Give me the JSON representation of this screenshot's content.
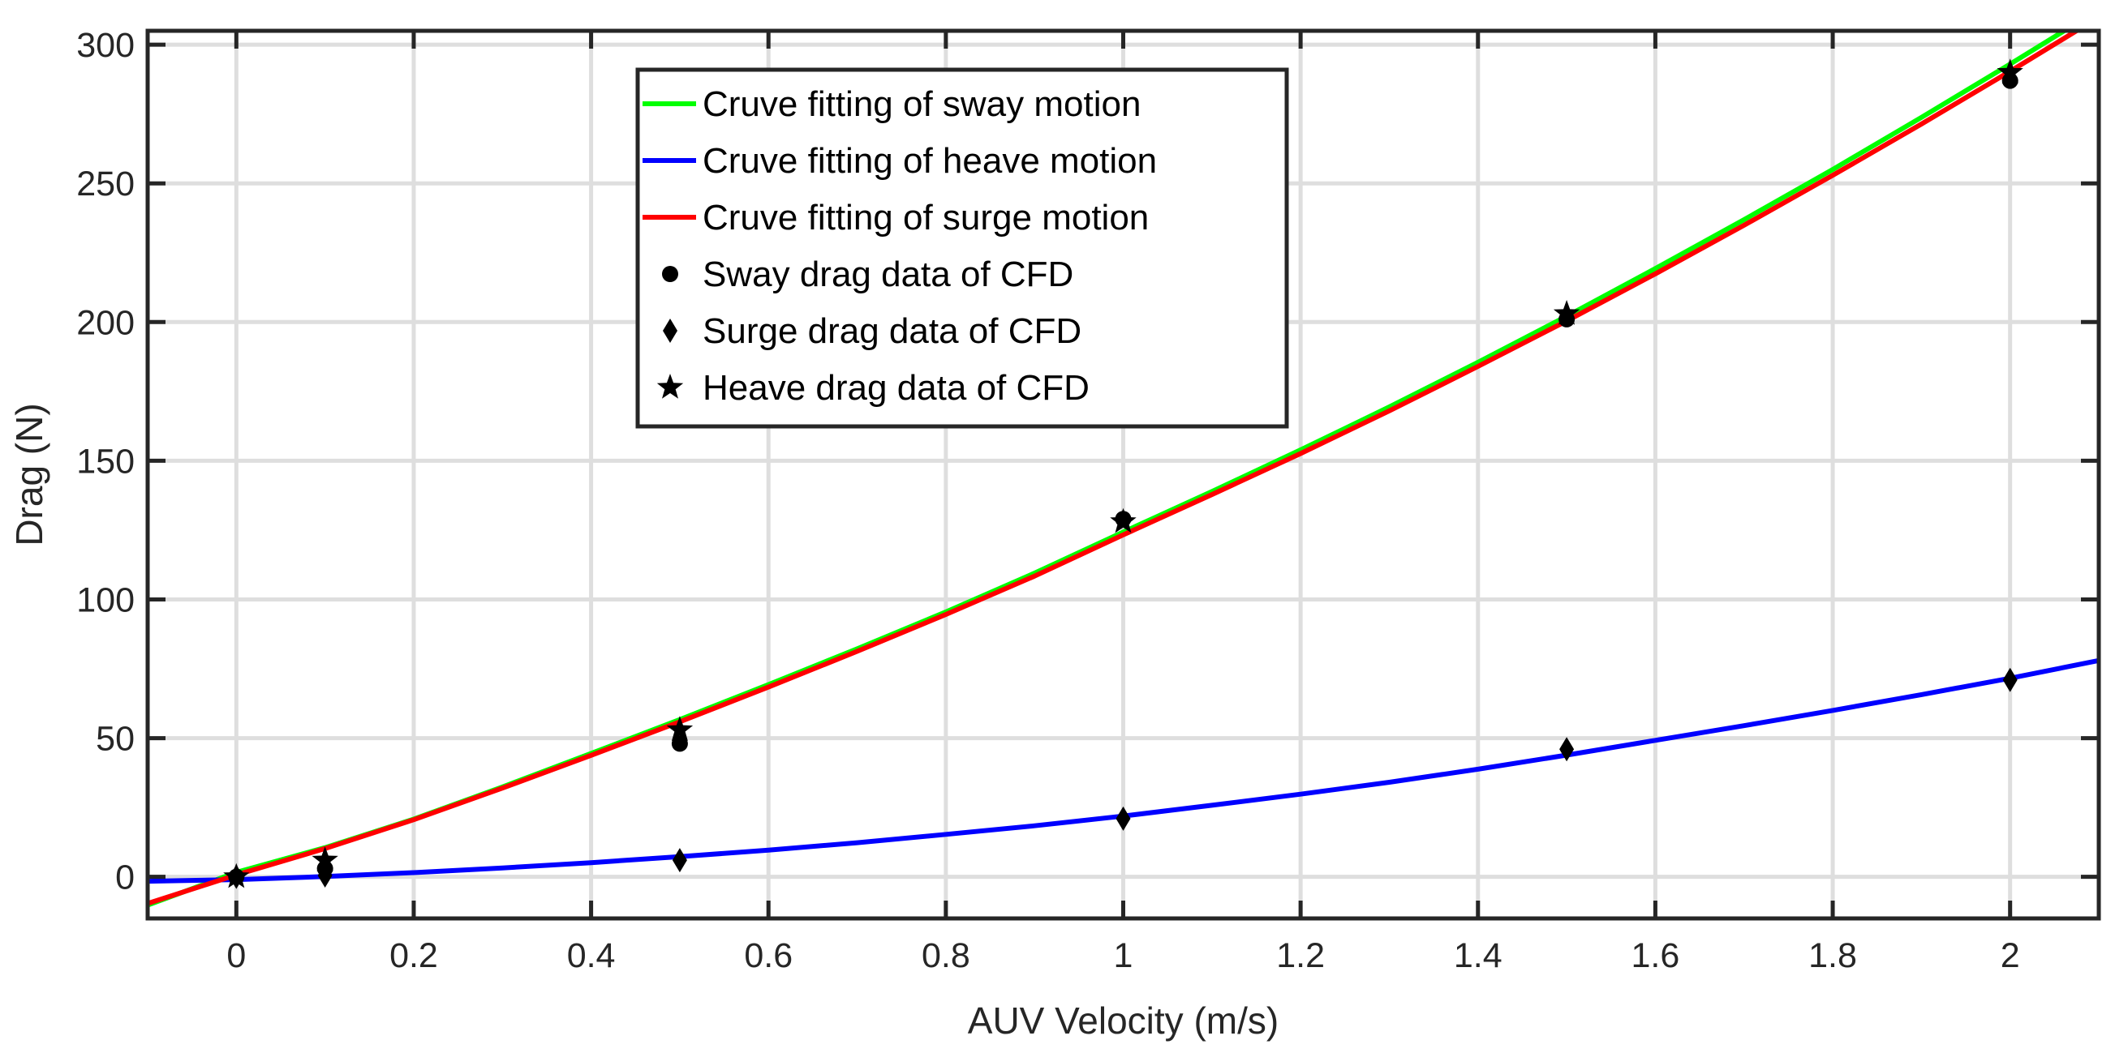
{
  "chart_data": {
    "type": "line",
    "xlabel": "AUV Velocity (m/s)",
    "ylabel": "Drag (N)",
    "xlim": [
      -0.1,
      2.1
    ],
    "ylim": [
      -15,
      305
    ],
    "xticks": [
      0,
      0.2,
      0.4,
      0.6,
      0.8,
      1,
      1.2,
      1.4,
      1.6,
      1.8,
      2
    ],
    "xtick_labels": [
      "0",
      "0.2",
      "0.4",
      "0.6",
      "0.8",
      "1",
      "1.2",
      "1.4",
      "1.6",
      "1.8",
      "2"
    ],
    "yticks": [
      0,
      50,
      100,
      150,
      200,
      250,
      300
    ],
    "ytick_labels": [
      "0",
      "50",
      "100",
      "150",
      "200",
      "250",
      "300"
    ],
    "grid": true,
    "legend_position": "top-center",
    "series": [
      {
        "name": "Cruve fitting of sway motion",
        "kind": "line",
        "color": "#00ff00",
        "x": [
          -0.1,
          0,
          0.1,
          0.2,
          0.3,
          0.4,
          0.5,
          0.6,
          0.7,
          0.8,
          0.9,
          1.0,
          1.1,
          1.2,
          1.3,
          1.4,
          1.5,
          1.6,
          1.7,
          1.8,
          1.9,
          2.0,
          2.1
        ],
        "y": [
          -10.2,
          1.6,
          10.5,
          20.8,
          32.4,
          44.5,
          56.7,
          69.3,
          82.2,
          95.5,
          109.5,
          124.3,
          138.9,
          153.9,
          169.4,
          185.5,
          202.1,
          219.3,
          236.9,
          255.0,
          273.8,
          293.0,
          312.7
        ]
      },
      {
        "name": "Cruve fitting of heave motion",
        "kind": "line",
        "color": "#0000ff",
        "x": [
          -0.1,
          0,
          0.1,
          0.2,
          0.3,
          0.4,
          0.5,
          0.6,
          0.7,
          0.8,
          0.9,
          1.0,
          1.1,
          1.2,
          1.3,
          1.4,
          1.5,
          1.6,
          1.7,
          1.8,
          1.9,
          2.0,
          2.1
        ],
        "y": [
          -1.6,
          -1.0,
          0.1,
          1.5,
          3.2,
          5.1,
          7.3,
          9.6,
          12.3,
          15.3,
          18.4,
          21.9,
          25.8,
          29.8,
          34.1,
          38.8,
          43.9,
          49.2,
          54.5,
          60.0,
          65.7,
          71.6,
          78.0
        ]
      },
      {
        "name": "Cruve fitting of surge motion",
        "kind": "line",
        "color": "#ff0000",
        "x": [
          -0.1,
          0,
          0.1,
          0.2,
          0.3,
          0.4,
          0.5,
          0.6,
          0.7,
          0.8,
          0.9,
          1.0,
          1.1,
          1.2,
          1.3,
          1.4,
          1.5,
          1.6,
          1.7,
          1.8,
          1.9,
          2.0,
          2.1
        ],
        "y": [
          -9.6,
          0.7,
          10.2,
          20.6,
          32.0,
          43.8,
          55.9,
          68.4,
          81.3,
          94.6,
          108.4,
          123.3,
          137.8,
          152.6,
          168.0,
          184.0,
          200.4,
          217.4,
          234.9,
          252.9,
          271.4,
          290.4,
          309.9
        ]
      },
      {
        "name": "Sway drag data of CFD",
        "kind": "marker",
        "marker": "circle",
        "color": "#000000",
        "x": [
          0,
          0.1,
          0.5,
          1.0,
          1.5,
          2.0
        ],
        "y": [
          0,
          3,
          48,
          129,
          201,
          287
        ]
      },
      {
        "name": "Surge drag data of CFD",
        "kind": "marker",
        "marker": "diamond",
        "color": "#000000",
        "x": [
          0,
          0.1,
          0.5,
          1.0,
          1.5,
          2.0
        ],
        "y": [
          0,
          0.5,
          6,
          21,
          46,
          71
        ]
      },
      {
        "name": "Heave drag data of CFD",
        "kind": "marker",
        "marker": "star",
        "color": "#000000",
        "x": [
          0,
          0.1,
          0.5,
          1.0,
          1.5,
          2.0
        ],
        "y": [
          0,
          6,
          53,
          128,
          203,
          290
        ]
      }
    ]
  }
}
